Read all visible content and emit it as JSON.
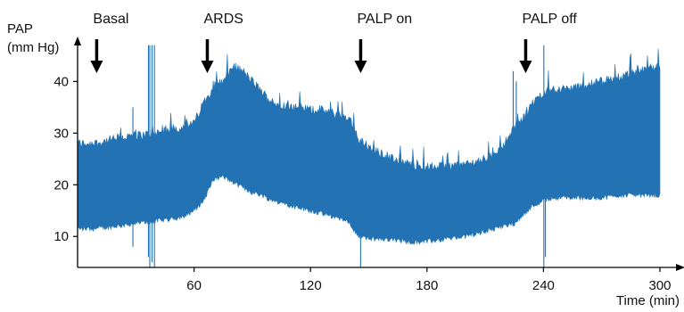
{
  "chart_data": {
    "type": "area",
    "title": "",
    "ylabel_line1": "PAP",
    "ylabel_line2": "(mm Hg)",
    "xlabel": "Time (min)",
    "x_ticks": [
      60,
      120,
      180,
      240,
      300
    ],
    "y_ticks": [
      10,
      20,
      30,
      40
    ],
    "xlim": [
      0,
      300
    ],
    "ylim": [
      4,
      48
    ],
    "grid": false,
    "color": "#2272b4",
    "events": [
      {
        "label": "Basal",
        "x": 8
      },
      {
        "label": "ARDS",
        "x": 65
      },
      {
        "label": "PALP on",
        "x": 144
      },
      {
        "label": "PALP off",
        "x": 229
      }
    ],
    "series": [
      {
        "x": [
          0,
          10,
          20,
          30,
          40,
          50,
          55,
          60,
          65,
          70,
          75,
          80,
          85,
          90,
          95,
          100,
          105,
          110,
          115,
          120,
          125,
          130,
          135,
          140,
          145,
          150,
          160,
          170,
          180,
          190,
          200,
          210,
          220,
          225,
          230,
          235,
          240,
          245,
          250,
          260,
          270,
          280,
          290,
          300
        ],
        "upper": [
          28,
          28,
          29,
          29.5,
          30,
          31,
          31,
          32,
          36,
          39,
          40,
          43,
          42,
          40,
          38,
          36,
          35.5,
          35,
          35,
          34.5,
          34.5,
          34,
          33.5,
          33,
          28.5,
          27,
          25.5,
          24,
          23.5,
          23.5,
          24,
          25,
          28,
          31,
          33,
          36,
          38,
          38.5,
          38.5,
          39,
          40,
          41,
          42,
          43
        ],
        "lower": [
          11.5,
          11.5,
          12,
          12.5,
          13,
          13.5,
          14,
          15,
          17,
          21,
          21.5,
          20.5,
          19.5,
          18.5,
          18,
          17,
          16.5,
          16,
          15.5,
          15,
          14.5,
          14,
          13.5,
          12.5,
          10,
          9.5,
          9.5,
          9,
          9,
          9.5,
          10,
          11,
          12,
          12.5,
          14.5,
          16,
          17,
          17.5,
          17.5,
          17.5,
          17.5,
          18,
          18,
          18
        ]
      }
    ]
  }
}
